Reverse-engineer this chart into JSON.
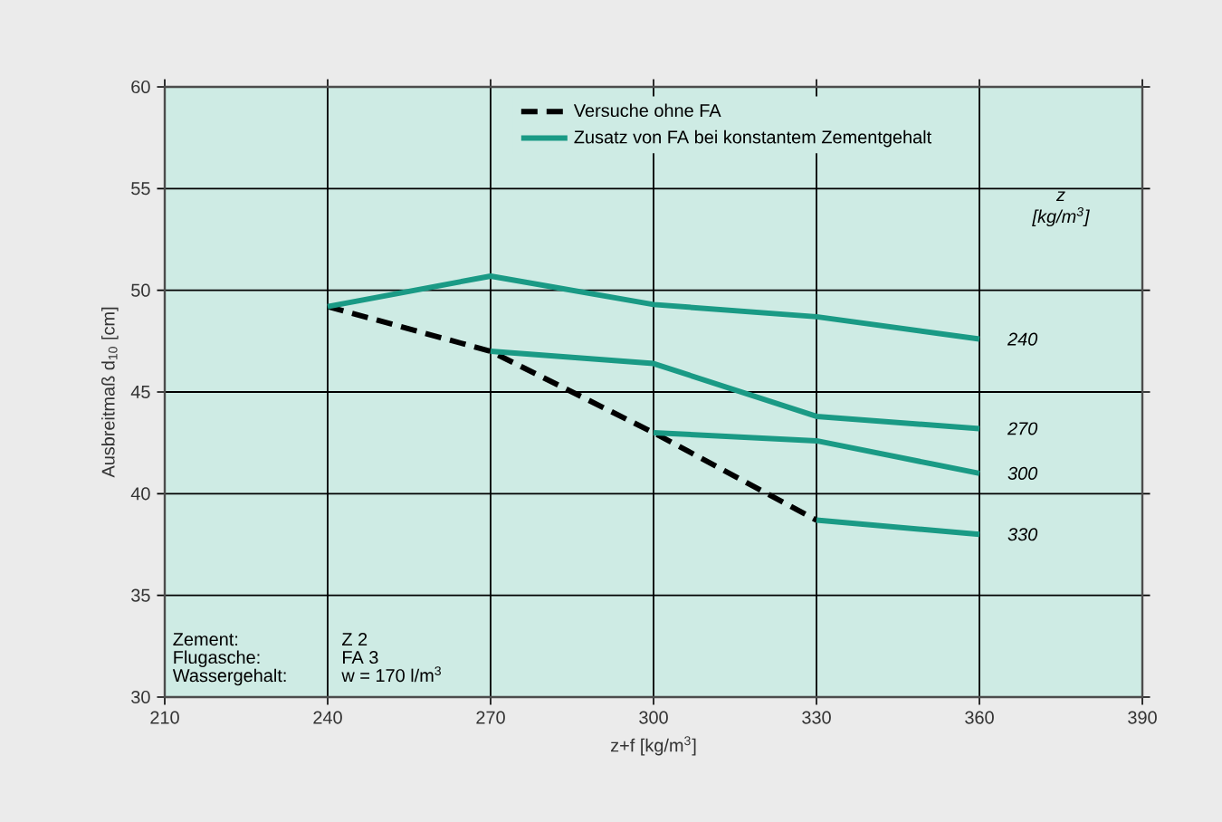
{
  "chart_data": {
    "type": "line",
    "xlabel": "z+f [kg/m$^{3}$]",
    "ylabel": "Ausbreitmaß d$_{10}$ [cm]",
    "xlim": [
      210,
      390
    ],
    "xticks": [
      210,
      240,
      270,
      300,
      330,
      360,
      390
    ],
    "ylim": [
      30,
      60
    ],
    "yticks": [
      30,
      35,
      40,
      45,
      50,
      55,
      60
    ],
    "grid": true,
    "legend": "top",
    "marker": "none",
    "series": [
      {
        "name": "Versuche ohne FA",
        "color": "#000000",
        "line_style": "dashed",
        "x": [
          240,
          270,
          300,
          330
        ],
        "values": [
          49.2,
          47.0,
          43.0,
          38.7
        ]
      },
      {
        "name": "Zusatz von FA bei konstantem Zementgehalt",
        "color": "#1a9a85",
        "line_style": "solid",
        "x": [
          240,
          270,
          300,
          330,
          360
        ],
        "values": [
          49.2,
          50.7,
          49.3,
          48.7,
          47.6
        ]
      },
      {
        "color": "#1a9a85",
        "line_style": "solid",
        "x": [
          270,
          300,
          330,
          360
        ],
        "values": [
          47.0,
          46.4,
          43.8,
          43.2
        ]
      },
      {
        "color": "#1a9a85",
        "line_style": "solid",
        "x": [
          300,
          330,
          360
        ],
        "values": [
          43.0,
          42.6,
          41.0
        ]
      },
      {
        "color": "#1a9a85",
        "line_style": "solid",
        "x": [
          330,
          360
        ],
        "values": [
          38.7,
          38.0
        ]
      }
    ],
    "annotations": [
      "240",
      "270",
      "300",
      "330",
      "z",
      "[kg/m$^{3}$]",
      "Zement:",
      "Z 2",
      "Flugasche:",
      "FA 3",
      "Wassergehalt:",
      "w = 170 l/m$^{3}$"
    ]
  }
}
